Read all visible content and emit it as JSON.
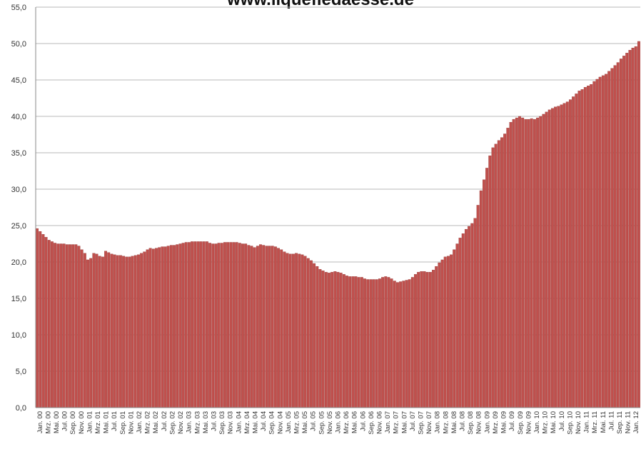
{
  "chart_data": {
    "type": "bar",
    "title": "www.liquefiedaesse.de",
    "xlabel": "",
    "ylabel": "",
    "ylim": [
      0,
      55
    ],
    "grid": true,
    "yticks": [
      "0,0",
      "5,0",
      "10,0",
      "15,0",
      "20,0",
      "25,0",
      "30,0",
      "35,0",
      "40,0",
      "45,0",
      "50,0",
      "55,0"
    ],
    "xticks": [
      "Jan. 00",
      "Mrz. 00",
      "Mai. 00",
      "Jul. 00",
      "Sep. 00",
      "Nov. 00",
      "Jan. 01",
      "Mrz. 01",
      "Mai. 01",
      "Jul. 01",
      "Sep. 01",
      "Nov. 01",
      "Jan. 02",
      "Mrz. 02",
      "Mai. 02",
      "Jul. 02",
      "Sep. 02",
      "Nov. 02",
      "Jan. 03",
      "Mrz. 03",
      "Mai. 03",
      "Jul. 03",
      "Sep. 03",
      "Nov. 03",
      "Jan. 04",
      "Mrz. 04",
      "Mai. 04",
      "Jul. 04",
      "Sep. 04",
      "Nov. 04",
      "Jan. 05",
      "Mrz. 05",
      "Mai. 05",
      "Jul. 05",
      "Sep. 05",
      "Nov. 05",
      "Jan. 06",
      "Mrz. 06",
      "Mai. 06",
      "Jul. 06",
      "Sep. 06",
      "Nov. 06",
      "Jan. 07",
      "Mrz. 07",
      "Mai. 07",
      "Jul. 07",
      "Sep. 07",
      "Nov. 07",
      "Jan. 08",
      "Mrz. 08",
      "Mai. 08",
      "Jul. 08",
      "Sep. 08",
      "Nov. 08",
      "Jan. 09",
      "Mrz. 09",
      "Mai. 09",
      "Jul. 09",
      "Sep. 09",
      "Nov. 09",
      "Jan. 10",
      "Mrz. 10",
      "Mai. 10",
      "Jul. 10",
      "Sep. 10",
      "Nov. 10",
      "Jan. 11",
      "Mrz. 11",
      "Mai. 11",
      "Jul. 11",
      "Sep. 11",
      "Nov. 11",
      "Jan. 12"
    ],
    "values": [
      24.6,
      24.2,
      23.8,
      23.4,
      23.0,
      22.8,
      22.6,
      22.5,
      22.5,
      22.5,
      22.4,
      22.4,
      22.4,
      22.4,
      22.2,
      21.7,
      21.2,
      20.3,
      20.5,
      21.2,
      21.1,
      20.8,
      20.7,
      21.5,
      21.3,
      21.1,
      21.0,
      20.9,
      20.9,
      20.8,
      20.7,
      20.7,
      20.8,
      20.9,
      21.0,
      21.2,
      21.4,
      21.7,
      21.9,
      21.8,
      21.9,
      22.0,
      22.1,
      22.1,
      22.2,
      22.3,
      22.3,
      22.4,
      22.5,
      22.6,
      22.7,
      22.7,
      22.8,
      22.8,
      22.8,
      22.8,
      22.8,
      22.8,
      22.6,
      22.5,
      22.5,
      22.6,
      22.6,
      22.7,
      22.7,
      22.7,
      22.7,
      22.7,
      22.6,
      22.5,
      22.5,
      22.3,
      22.2,
      22.0,
      22.2,
      22.4,
      22.3,
      22.2,
      22.2,
      22.2,
      22.1,
      21.9,
      21.7,
      21.4,
      21.2,
      21.1,
      21.1,
      21.2,
      21.1,
      21.0,
      20.8,
      20.5,
      20.2,
      19.8,
      19.4,
      19.0,
      18.8,
      18.6,
      18.5,
      18.6,
      18.7,
      18.6,
      18.5,
      18.3,
      18.1,
      18.0,
      18.0,
      18.0,
      17.9,
      17.9,
      17.7,
      17.6,
      17.6,
      17.6,
      17.6,
      17.7,
      17.9,
      18.0,
      17.9,
      17.7,
      17.4,
      17.2,
      17.3,
      17.4,
      17.5,
      17.6,
      17.9,
      18.3,
      18.6,
      18.7,
      18.7,
      18.6,
      18.6,
      18.9,
      19.4,
      19.9,
      20.3,
      20.7,
      20.8,
      21.0,
      21.7,
      22.5,
      23.3,
      23.9,
      24.5,
      24.9,
      25.3,
      26.0,
      27.8,
      29.8,
      31.3,
      32.9,
      34.6,
      35.7,
      36.2,
      36.7,
      37.1,
      37.6,
      38.4,
      39.2,
      39.6,
      39.8,
      40.0,
      39.8,
      39.6,
      39.6,
      39.7,
      39.6,
      39.8,
      40.0,
      40.3,
      40.6,
      40.9,
      41.1,
      41.3,
      41.4,
      41.6,
      41.8,
      42.0,
      42.3,
      42.7,
      43.1,
      43.5,
      43.7,
      44.0,
      44.2,
      44.4,
      44.8,
      45.1,
      45.4,
      45.6,
      45.8,
      46.2,
      46.6,
      47.0,
      47.4,
      47.9,
      48.3,
      48.7,
      49.1,
      49.4,
      49.6,
      50.3
    ],
    "colors": {
      "bar": "#c0504d",
      "bar_stroke": "#8b2f2c",
      "grid": "#b8b8b8",
      "axis": "#888888"
    }
  }
}
